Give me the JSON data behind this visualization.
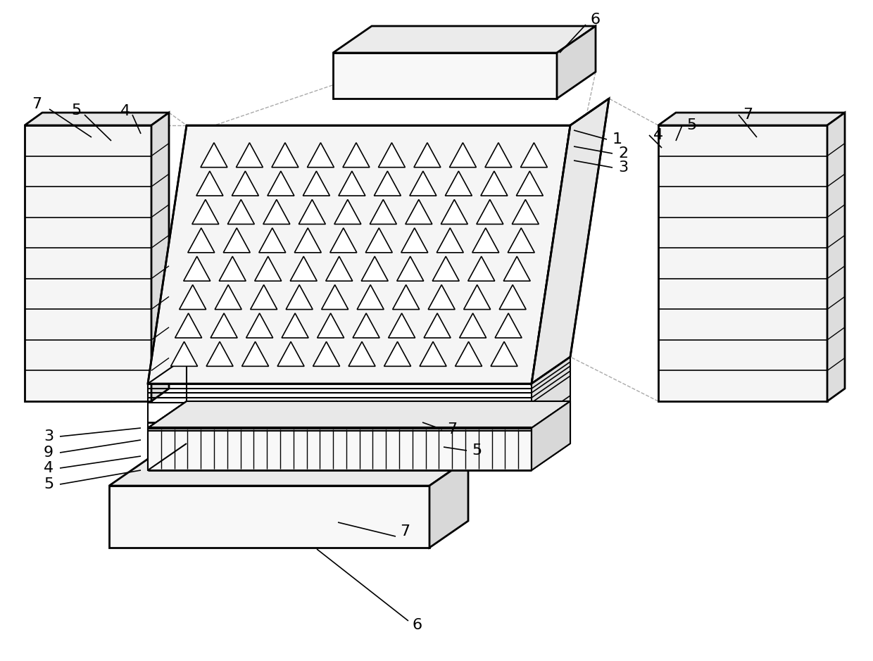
{
  "bg_color": "#ffffff",
  "lc": "#000000",
  "figsize": [
    12.4,
    9.39
  ],
  "dpi": 100,
  "fs": 16
}
